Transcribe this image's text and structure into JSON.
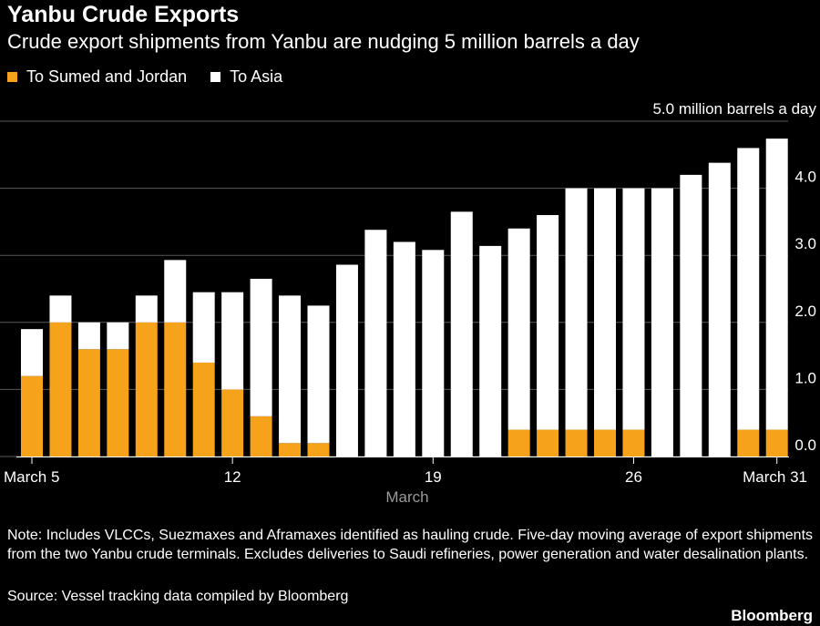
{
  "header": {
    "title": "Yanbu Crude Exports",
    "subtitle": "Crude export shipments from Yanbu are nudging 5 million barrels a day"
  },
  "legend": {
    "items": [
      {
        "label": "To Sumed and Jordan",
        "color": "#F7A21B"
      },
      {
        "label": "To Asia",
        "color": "#FFFFFF"
      }
    ]
  },
  "chart_data": {
    "type": "bar",
    "stacked": true,
    "title": "Yanbu Crude Exports",
    "xlabel": "March",
    "ylabel": "",
    "unit_label": "5.0 million barrels a day",
    "ylim": [
      0,
      5
    ],
    "y_ticks": [
      "0.0",
      "1.0",
      "2.0",
      "3.0",
      "4.0"
    ],
    "y_tick_values": [
      0,
      1,
      2,
      3,
      4
    ],
    "categories": [
      "5",
      "6",
      "7",
      "8",
      "9",
      "10",
      "11",
      "12",
      "13",
      "14",
      "15",
      "16",
      "17",
      "18",
      "19",
      "20",
      "21",
      "22",
      "23",
      "24",
      "25",
      "26",
      "27",
      "28",
      "29",
      "30",
      "31"
    ],
    "x_tick_labels": [
      {
        "category": "5",
        "label": "March 5"
      },
      {
        "category": "12",
        "label": "12"
      },
      {
        "category": "19",
        "label": "19"
      },
      {
        "category": "26",
        "label": "26"
      },
      {
        "category": "31",
        "label": "March 31"
      }
    ],
    "series": [
      {
        "name": "To Sumed and Jordan",
        "color": "#F7A21B",
        "values": [
          1.2,
          2.0,
          1.6,
          1.6,
          2.0,
          2.0,
          1.4,
          1.0,
          0.6,
          0.2,
          0.2,
          0,
          0,
          0,
          0,
          0,
          0,
          0.4,
          0.4,
          0.4,
          0.4,
          0.4,
          0,
          0,
          0,
          0.4,
          0.4
        ]
      },
      {
        "name": "To Asia",
        "color": "#FFFFFF",
        "values": [
          0.7,
          0.4,
          0.4,
          0.4,
          0.4,
          0.93,
          1.05,
          1.45,
          2.05,
          2.2,
          2.05,
          2.86,
          3.38,
          3.2,
          3.08,
          3.65,
          3.14,
          3.0,
          3.2,
          3.6,
          3.6,
          3.6,
          4.0,
          4.2,
          4.38,
          4.2,
          4.34
        ]
      }
    ]
  },
  "footer": {
    "note": "Note: Includes VLCCs, Suezmaxes and Aframaxes identified as hauling crude. Five-day moving average of export shipments from the two Yanbu crude terminals. Excludes deliveries to Saudi refineries, power generation and water desalination plants.",
    "source": "Source: Vessel tracking data compiled by Bloomberg",
    "brand": "Bloomberg"
  }
}
